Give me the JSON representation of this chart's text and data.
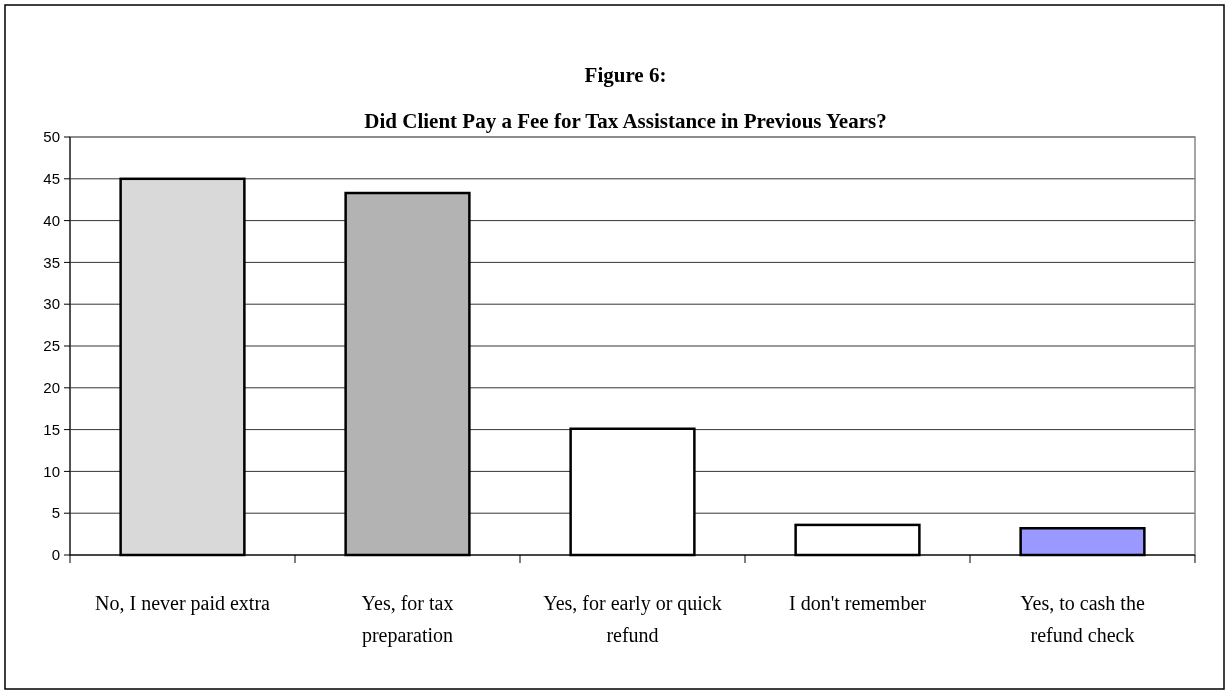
{
  "chart_data": {
    "type": "bar",
    "title": "Figure 6:",
    "subtitle": "Did Client Pay a Fee for Tax Assistance in Previous Years?",
    "categories": [
      "No, I never paid extra",
      "Yes, for tax preparation",
      "Yes, for early or quick refund",
      "I don't remember",
      "Yes, to cash the refund check"
    ],
    "values": [
      45,
      43.3,
      15.1,
      3.6,
      3.2
    ],
    "colors": [
      "#d9d9d9",
      "#b3b3b3",
      "#ffffff",
      "#ffffff",
      "#9999ff"
    ],
    "ylim": [
      0,
      50
    ],
    "yticks": [
      0,
      5,
      10,
      15,
      20,
      25,
      30,
      35,
      40,
      45,
      50
    ],
    "grid": "y"
  }
}
